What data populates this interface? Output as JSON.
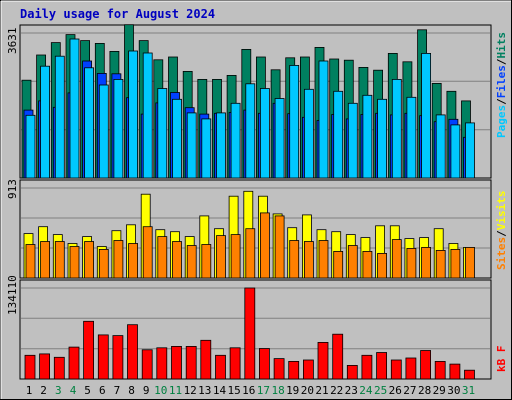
{
  "title": "Daily usage for August 2024",
  "colors": {
    "hits": "#00c8ff",
    "files": "#0040ff",
    "pages": "#008060",
    "visits": "#ffff00",
    "sites": "#ff8000",
    "kbytes": "#ff0000",
    "title": "#0000c0",
    "weekend_label": "#008040",
    "weekday_label": "#000000"
  },
  "legends": {
    "top": {
      "pages": "Pages",
      "files": "Files",
      "hits": "Hits",
      "sep": "/"
    },
    "middle": {
      "sites": "Sites",
      "visits": "Visits",
      "sep": "/"
    },
    "bottom": {
      "kbytes": "kB F"
    }
  },
  "chart_data": {
    "type": "bar",
    "title": "Daily usage for August 2024",
    "categories": [
      "1",
      "2",
      "3",
      "4",
      "5",
      "6",
      "7",
      "8",
      "9",
      "10",
      "11",
      "12",
      "13",
      "14",
      "15",
      "16",
      "17",
      "18",
      "19",
      "20",
      "21",
      "22",
      "23",
      "24",
      "25",
      "26",
      "27",
      "28",
      "29",
      "30",
      "31"
    ],
    "weekend_days": [
      3,
      4,
      10,
      11,
      17,
      18,
      24,
      25,
      31
    ],
    "panels": [
      {
        "name": "hits-files-pages",
        "ymax_label": "3631",
        "ymax": 3631,
        "series": [
          {
            "name": "Pages",
            "values": [
              2450,
              3080,
              3390,
              3590,
              3440,
              3370,
              3170,
              3840,
              3440,
              2960,
              3030,
              2670,
              2470,
              2470,
              2570,
              3220,
              3030,
              2710,
              3010,
              3030,
              3270,
              2980,
              2950,
              2770,
              2700,
              3120,
              2910,
              3710,
              2370,
              2170,
              1930
            ]
          },
          {
            "name": "Files",
            "values": [
              1700,
              1930,
              1770,
              2130,
              2930,
              2620,
              2610,
              2010,
              1600,
              1880,
              2140,
              1760,
              1600,
              1620,
              1640,
              1700,
              1620,
              1870,
              1610,
              1520,
              1440,
              1590,
              1480,
              1590,
              1620,
              1580,
              1620,
              1560,
              1410,
              1470,
              1020
            ]
          },
          {
            "name": "Hits",
            "values": [
              1570,
              2800,
              3050,
              3480,
              2760,
              2330,
              2470,
              3180,
              3130,
              2240,
              1970,
              1630,
              1480,
              1630,
              1870,
              2360,
              2240,
              1990,
              2820,
              2220,
              2930,
              2170,
              1870,
              2070,
              1970,
              2470,
              2020,
              3120,
              1580,
              1330,
              1380
            ]
          }
        ]
      },
      {
        "name": "visits-sites",
        "ymax_label": "913",
        "ymax": 913,
        "series": [
          {
            "name": "Visits",
            "values": [
              450,
              520,
              440,
              350,
              420,
              320,
              480,
              540,
              850,
              490,
              470,
              420,
              630,
              500,
              830,
              880,
              830,
              650,
              510,
              640,
              490,
              470,
              440,
              410,
              530,
              530,
              400,
              410,
              500,
              350,
              310
            ]
          },
          {
            "name": "Sites",
            "values": [
              340,
              370,
              370,
              320,
              370,
              290,
              380,
              350,
              520,
              420,
              370,
              330,
              340,
              430,
              440,
              500,
              660,
              630,
              380,
              370,
              380,
              270,
              330,
              270,
              250,
              390,
              300,
              310,
              280,
              290,
              310
            ]
          }
        ]
      },
      {
        "name": "kbytes",
        "ymax_label": "134110",
        "ymax": 134110,
        "series": [
          {
            "name": "kB F",
            "values": [
              35000,
              37000,
              32000,
              47000,
              85000,
              65000,
              64000,
              80000,
              43000,
              46000,
              48000,
              48000,
              57000,
              35000,
              46000,
              134110,
              45000,
              30000,
              26000,
              28000,
              54000,
              66000,
              20000,
              35000,
              39000,
              28000,
              31000,
              42000,
              26000,
              22000,
              13000
            ]
          }
        ]
      }
    ],
    "grid": true
  }
}
